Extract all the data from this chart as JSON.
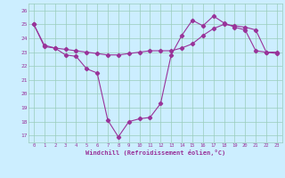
{
  "line1_x": [
    0,
    1,
    2,
    3,
    4,
    5,
    6,
    7,
    8,
    9,
    10,
    11,
    12,
    13,
    14,
    15,
    16,
    17,
    18,
    19,
    20,
    21,
    22,
    23
  ],
  "line1_y": [
    25.0,
    23.5,
    23.3,
    22.8,
    22.7,
    21.8,
    21.5,
    18.1,
    16.9,
    18.0,
    18.2,
    18.3,
    19.3,
    22.8,
    24.2,
    25.3,
    24.9,
    25.6,
    25.1,
    24.8,
    24.6,
    23.1,
    23.0,
    23.0
  ],
  "line2_x": [
    0,
    1,
    2,
    3,
    4,
    5,
    6,
    7,
    8,
    9,
    10,
    11,
    12,
    13,
    14,
    15,
    16,
    17,
    18,
    19,
    20,
    21,
    22,
    23
  ],
  "line2_y": [
    25.0,
    23.4,
    23.3,
    23.2,
    23.1,
    23.0,
    22.9,
    22.8,
    22.8,
    22.9,
    23.0,
    23.1,
    23.1,
    23.1,
    23.3,
    23.6,
    24.2,
    24.7,
    25.0,
    24.9,
    24.8,
    24.6,
    23.0,
    22.9
  ],
  "line_color": "#993399",
  "bg_color": "#cceeff",
  "grid_color": "#99ccbb",
  "marker": "D",
  "marker_size": 2.2,
  "ylim": [
    16.5,
    26.5
  ],
  "yticks": [
    17,
    18,
    19,
    20,
    21,
    22,
    23,
    24,
    25,
    26
  ],
  "xticks": [
    0,
    1,
    2,
    3,
    4,
    5,
    6,
    7,
    8,
    9,
    10,
    11,
    12,
    13,
    14,
    15,
    16,
    17,
    18,
    19,
    20,
    21,
    22,
    23
  ],
  "xlabel": "Windchill (Refroidissement éolien,°C)"
}
